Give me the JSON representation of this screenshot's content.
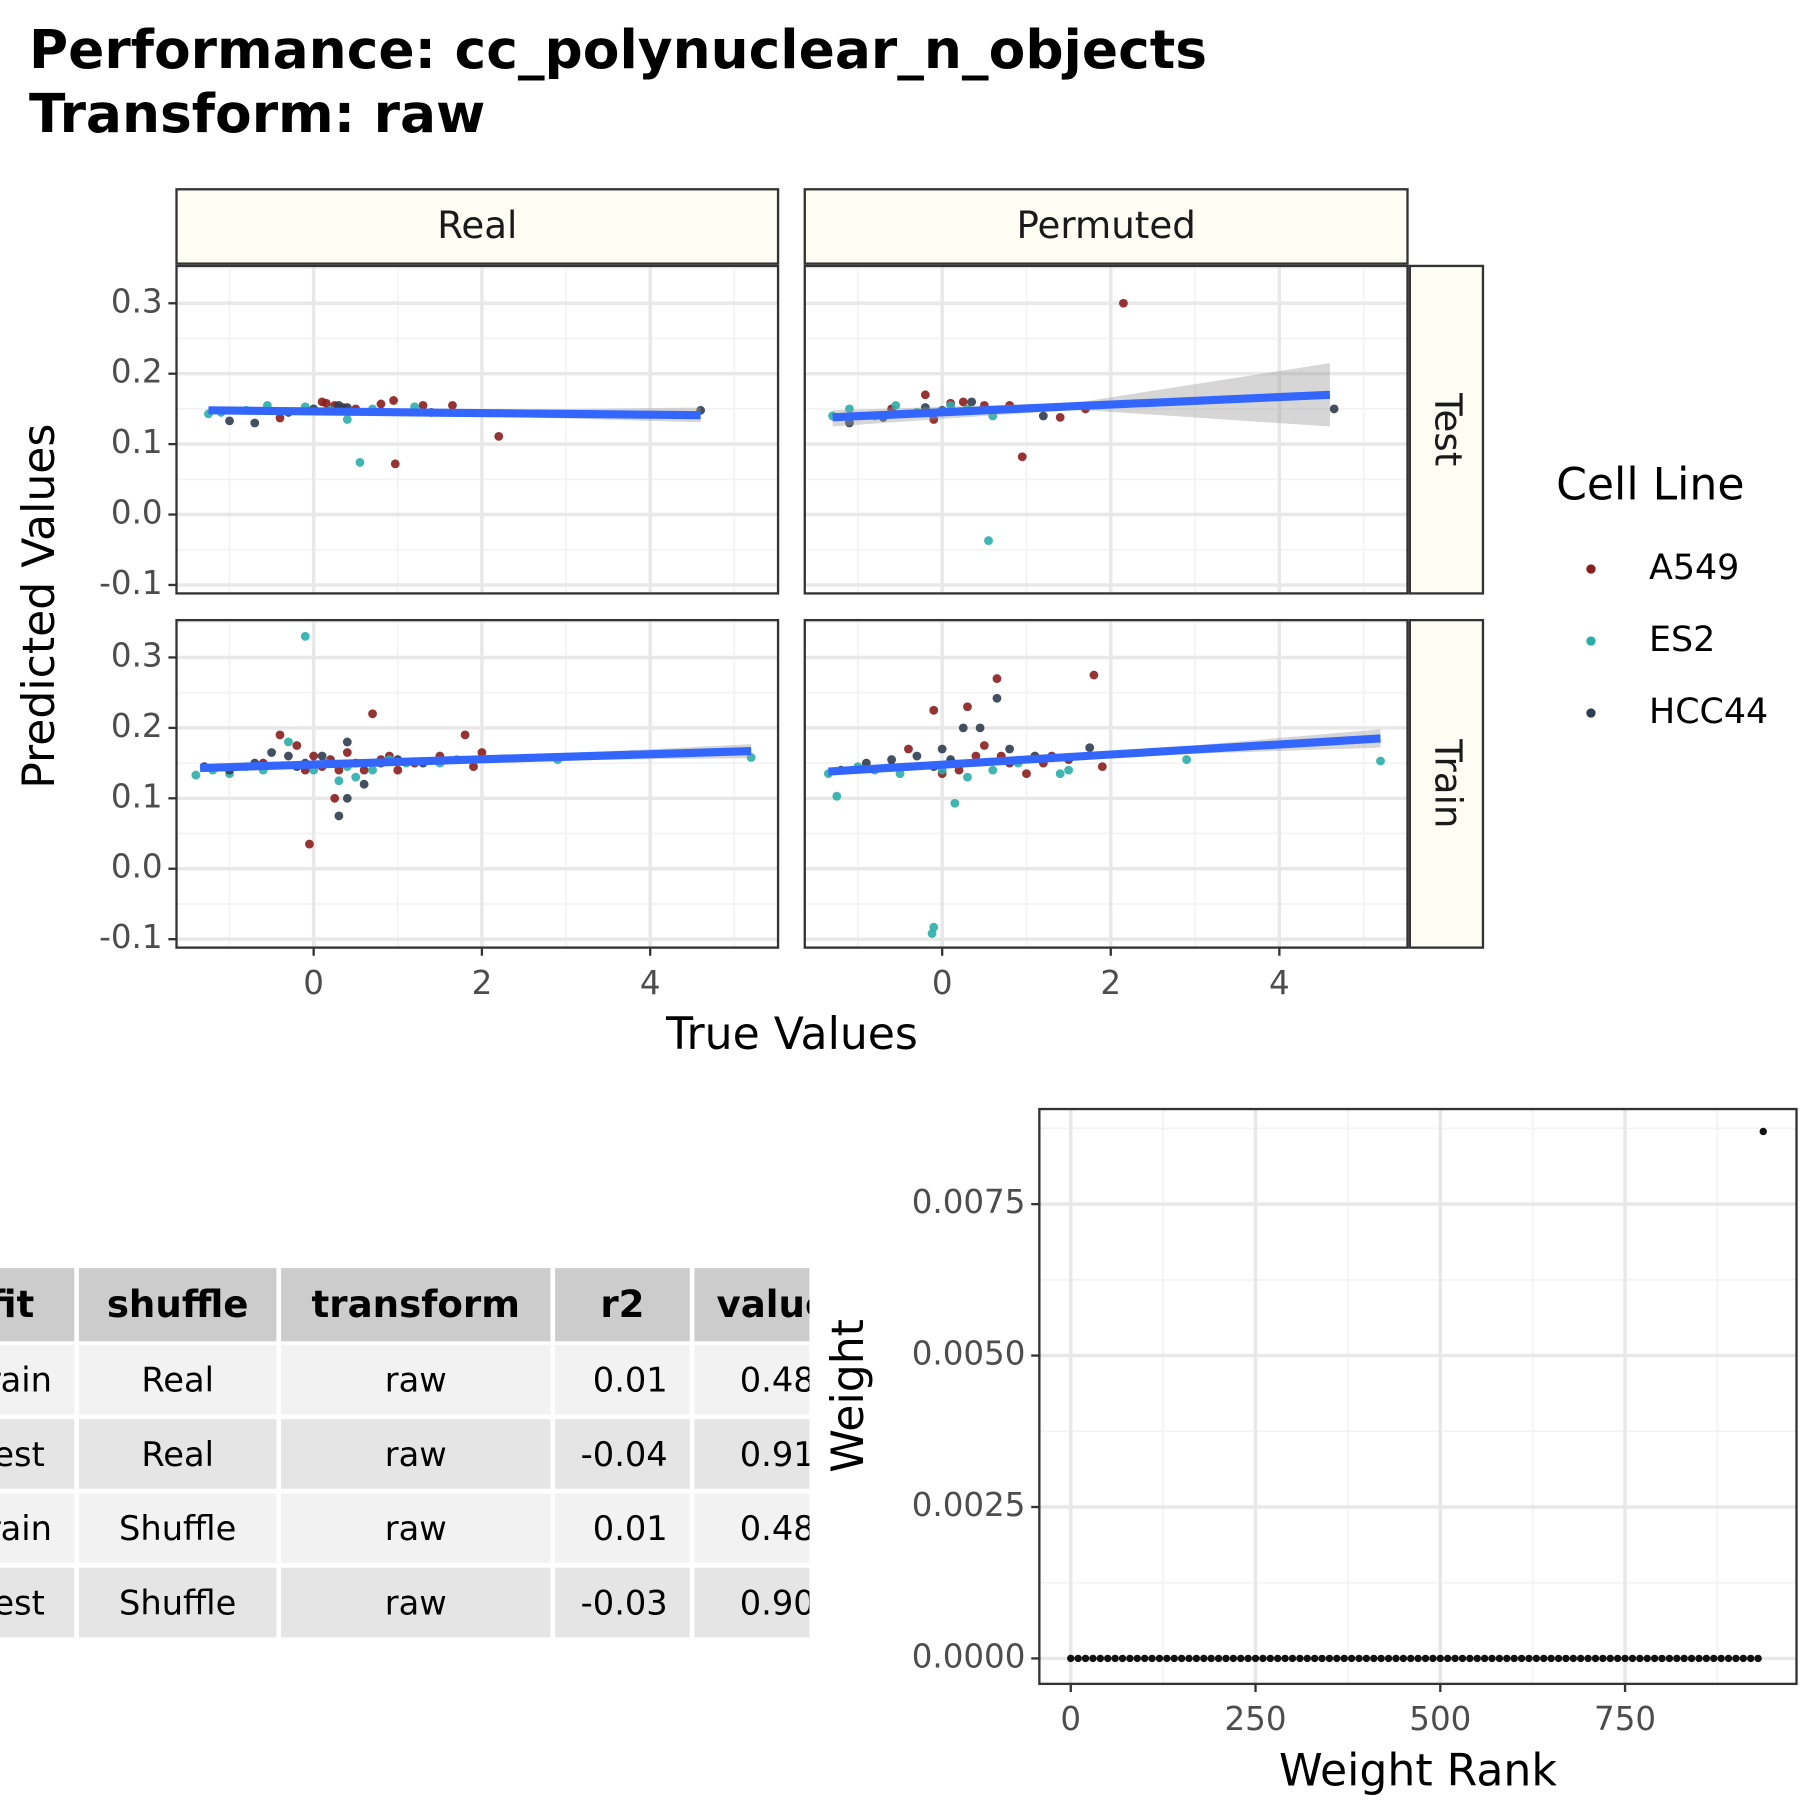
{
  "chart_data": [
    {
      "type": "scatter",
      "title": "Performance: cc_polynuclear_n_objects",
      "subtitle": "Transform: raw",
      "x_label": "True Values",
      "y_label": "Predicted Values",
      "columns": [
        "Real",
        "Permuted"
      ],
      "rows": [
        "Test",
        "Train"
      ],
      "legend_title": "Cell Line",
      "series": [
        {
          "name": "A549",
          "color": "#8b1e1e"
        },
        {
          "name": "ES2",
          "color": "#2aaea8"
        },
        {
          "name": "HCC44",
          "color": "#2e3d50"
        }
      ],
      "fit_color": "#3366ff",
      "grid": true,
      "xlim": [
        -1.63,
        5.52
      ],
      "xticks": [
        0,
        2,
        4
      ],
      "ylim": [
        -0.112,
        0.353
      ],
      "yticks": [
        -0.1,
        {
          "value": 0,
          "label": "0.0"
        },
        0.1,
        0.2,
        0.3
      ],
      "panels": [
        [
          {
            "x": [
              [
                0.15,
                0.25,
                0.5,
                0.8,
                0.95,
                0.97,
                1.3,
                1.65,
                2.2,
                -0.4,
                0.1,
                0.35
              ],
              [
                -1.25,
                -0.8,
                -0.55,
                -0.1,
                0.4,
                0.55,
                0.7,
                1.2,
                -1.1,
                0.2
              ],
              [
                -1.0,
                -0.7,
                -0.3,
                0.3,
                0.4,
                1.4,
                4.6,
                0.0
              ]
            ],
            "y": [
              [
                0.158,
                0.155,
                0.15,
                0.157,
                0.162,
                0.072,
                0.155,
                0.155,
                0.111,
                0.137,
                0.16,
                0.152
              ],
              [
                0.143,
                0.148,
                0.155,
                0.153,
                0.135,
                0.074,
                0.15,
                0.153,
                0.145,
                0.148
              ],
              [
                0.133,
                0.13,
                0.145,
                0.155,
                0.152,
                0.145,
                0.148,
                0.15
              ]
            ],
            "fit": {
              "x": [
                -1.25,
                1.6,
                4.6
              ],
              "y": [
                0.148,
                0.1445,
                0.141
              ],
              "lower": [
                0.143,
                0.141,
                0.131
              ],
              "upper": [
                0.153,
                0.148,
                0.152
              ]
            }
          },
          {
            "x": [
              [
                -0.2,
                0.1,
                0.25,
                -0.1,
                0.95,
                0.8,
                1.4,
                1.7,
                2.15,
                -0.6,
                0.5
              ],
              [
                -1.3,
                -1.1,
                -0.55,
                -0.3,
                0.1,
                0.55,
                0.6,
                -0.8,
                0.3
              ],
              [
                -1.1,
                -0.7,
                -0.2,
                0.35,
                1.2,
                4.65,
                0.0
              ]
            ],
            "y": [
              [
                0.17,
                0.158,
                0.16,
                0.135,
                0.082,
                0.155,
                0.138,
                0.15,
                0.3,
                0.15,
                0.155
              ],
              [
                0.14,
                0.15,
                0.155,
                0.145,
                0.155,
                -0.037,
                0.14,
                0.14,
                0.15
              ],
              [
                0.13,
                0.138,
                0.152,
                0.16,
                0.14,
                0.15,
                0.148
              ]
            ],
            "fit": {
              "x": [
                -1.3,
                1.6,
                4.6
              ],
              "y": [
                0.138,
                0.154,
                0.17
              ],
              "lower": [
                0.125,
                0.149,
                0.125
              ],
              "upper": [
                0.148,
                0.159,
                0.215
              ]
            }
          }
        ],
        [
          {
            "x": [
              [
                -0.4,
                -0.2,
                0.0,
                0.1,
                0.2,
                0.3,
                0.4,
                0.5,
                0.6,
                0.7,
                0.8,
                1.0,
                1.2,
                1.5,
                1.8,
                1.9,
                2.0,
                -0.05,
                0.25,
                -0.6,
                -0.1,
                0.9
              ],
              [
                -1.4,
                -1.2,
                -1.0,
                -0.8,
                -0.6,
                -0.1,
                0.0,
                0.15,
                0.3,
                0.5,
                0.7,
                0.9,
                1.1,
                1.5,
                1.7,
                2.9,
                5.2,
                -0.3,
                0.4
              ],
              [
                -1.3,
                -1.0,
                -0.7,
                -0.5,
                -0.3,
                -0.1,
                0.1,
                0.3,
                0.4,
                0.4,
                0.6,
                0.8,
                1.0,
                1.3,
                -0.2
              ]
            ],
            "y": [
              [
                0.19,
                0.175,
                0.16,
                0.145,
                0.155,
                0.14,
                0.165,
                0.15,
                0.14,
                0.22,
                0.155,
                0.14,
                0.15,
                0.16,
                0.19,
                0.145,
                0.165,
                0.035,
                0.1,
                0.15,
                0.14,
                0.16
              ],
              [
                0.133,
                0.14,
                0.135,
                0.145,
                0.14,
                0.33,
                0.14,
                0.15,
                0.125,
                0.13,
                0.14,
                0.155,
                0.15,
                0.15,
                0.155,
                0.155,
                0.158,
                0.18,
                0.145
              ],
              [
                0.145,
                0.14,
                0.15,
                0.165,
                0.16,
                0.15,
                0.16,
                0.075,
                0.1,
                0.18,
                0.12,
                0.15,
                0.155,
                0.15,
                0.145
              ]
            ],
            "fit": {
              "x": [
                -1.35,
                1.9,
                5.2
              ],
              "y": [
                0.143,
                0.155,
                0.167
              ],
              "lower": [
                0.139,
                0.153,
                0.157
              ],
              "upper": [
                0.147,
                0.157,
                0.177
              ]
            }
          },
          {
            "x": [
              [
                -0.4,
                -0.1,
                0.1,
                0.3,
                0.4,
                0.5,
                0.65,
                0.8,
                1.0,
                1.2,
                1.5,
                1.8,
                1.9,
                0.2,
                -0.6,
                0.0,
                0.7,
                1.3
              ],
              [
                -1.35,
                -1.25,
                -1.0,
                -0.8,
                -0.5,
                -0.1,
                -0.12,
                0.15,
                0.3,
                0.6,
                0.9,
                1.4,
                1.5,
                2.9,
                5.2,
                0.0
              ],
              [
                -1.2,
                -0.9,
                -0.6,
                -0.3,
                0.0,
                0.25,
                0.45,
                0.65,
                0.8,
                1.1,
                1.75,
                0.1,
                -0.1
              ]
            ],
            "y": [
              [
                0.17,
                0.225,
                0.15,
                0.23,
                0.16,
                0.175,
                0.27,
                0.15,
                0.135,
                0.15,
                0.155,
                0.275,
                0.145,
                0.14,
                0.145,
                0.135,
                0.16,
                0.16
              ],
              [
                0.135,
                0.103,
                0.145,
                0.14,
                0.135,
                -0.083,
                -0.092,
                0.093,
                0.13,
                0.14,
                0.15,
                0.135,
                0.14,
                0.155,
                0.153,
                0.14
              ],
              [
                0.14,
                0.15,
                0.155,
                0.16,
                0.17,
                0.2,
                0.2,
                0.242,
                0.17,
                0.16,
                0.172,
                0.155,
                0.145
              ]
            ],
            "fit": {
              "x": [
                -1.35,
                1.9,
                5.2
              ],
              "y": [
                0.138,
                0.1615,
                0.185
              ],
              "lower": [
                0.133,
                0.159,
                0.172
              ],
              "upper": [
                0.143,
                0.164,
                0.198
              ]
            }
          }
        ]
      ]
    },
    {
      "type": "scatter",
      "x_label": "Weight Rank",
      "y_label": "Weight",
      "color": "#111111",
      "grid": true,
      "xlim": [
        -42.5,
        982
      ],
      "xticks": [
        0,
        250,
        500,
        750
      ],
      "ylim": [
        -0.00042,
        0.00907
      ],
      "yticks": [
        {
          "value": 0,
          "label": "0.0000"
        },
        {
          "value": 0.0025,
          "label": "0.0025"
        },
        {
          "value": 0.005,
          "label": "0.0050"
        },
        {
          "value": 0.0075,
          "label": "0.0075"
        }
      ],
      "x": [
        0,
        10,
        20,
        30,
        40,
        50,
        60,
        70,
        80,
        90,
        100,
        110,
        120,
        130,
        140,
        150,
        160,
        170,
        180,
        190,
        200,
        210,
        220,
        230,
        240,
        250,
        260,
        270,
        280,
        290,
        300,
        310,
        320,
        330,
        340,
        350,
        360,
        370,
        380,
        390,
        400,
        410,
        420,
        430,
        440,
        450,
        460,
        470,
        480,
        490,
        500,
        510,
        520,
        530,
        540,
        550,
        560,
        570,
        580,
        590,
        600,
        610,
        620,
        630,
        640,
        650,
        660,
        670,
        680,
        690,
        700,
        710,
        720,
        730,
        740,
        750,
        760,
        770,
        780,
        790,
        800,
        810,
        820,
        830,
        840,
        850,
        860,
        870,
        880,
        890,
        900,
        910,
        920,
        930,
        937
      ],
      "y": [
        0,
        0,
        0,
        0,
        0,
        0,
        0,
        0,
        0,
        0,
        0,
        0,
        0,
        0,
        0,
        0,
        0,
        0,
        0,
        0,
        0,
        0,
        0,
        0,
        0,
        0,
        0,
        0,
        0,
        0,
        0,
        0,
        0,
        0,
        0,
        0,
        0,
        0,
        0,
        0,
        0,
        0,
        0,
        0,
        0,
        0,
        0,
        0,
        0,
        0,
        0,
        0,
        0,
        0,
        0,
        0,
        0,
        0,
        0,
        0,
        0,
        0,
        0,
        0,
        0,
        0,
        0,
        0,
        0,
        0,
        0,
        0,
        0,
        0,
        0,
        0,
        0,
        0,
        0,
        0,
        0,
        0,
        0,
        0,
        0,
        0,
        0,
        0,
        0,
        0,
        0,
        0,
        0,
        0,
        0.0087
      ]
    }
  ],
  "table": {
    "columns": [
      "fit",
      "shuffle",
      "transform",
      "r2",
      "value"
    ],
    "rows": [
      [
        "Train",
        "Real",
        "raw",
        "0.01",
        "0.48"
      ],
      [
        "Test",
        "Real",
        "raw",
        "-0.04",
        "0.91"
      ],
      [
        "Train",
        "Shuffle",
        "raw",
        "0.01",
        "0.48"
      ],
      [
        "Test",
        "Shuffle",
        "raw",
        "-0.03",
        "0.90"
      ]
    ]
  }
}
